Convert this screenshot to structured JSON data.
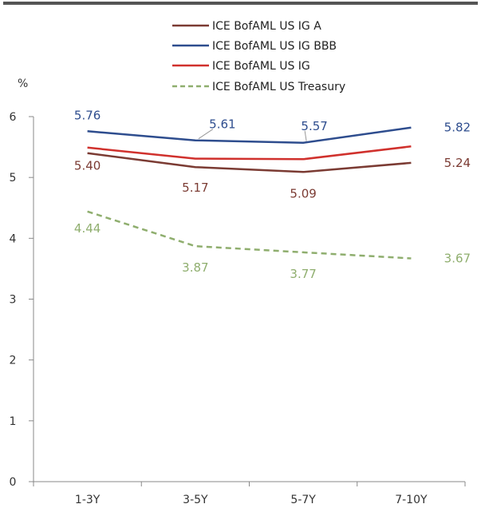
{
  "chart_data": {
    "type": "line",
    "title": "",
    "xlabel": "",
    "ylabel": "%",
    "ylim": [
      0,
      6
    ],
    "yticks": [
      0,
      1,
      2,
      3,
      4,
      5,
      6
    ],
    "categories": [
      "1-3Y",
      "3-5Y",
      "5-7Y",
      "7-10Y"
    ],
    "grid": false,
    "legend_position": "top-center",
    "series": [
      {
        "name": "ICE BofAML US IG A",
        "values": [
          5.4,
          5.17,
          5.09,
          5.24
        ],
        "labels": [
          "5.40",
          "5.17",
          "5.09",
          "5.24"
        ],
        "color": "#7b3b33",
        "dashed": false
      },
      {
        "name": "ICE BofAML US IG BBB",
        "values": [
          5.76,
          5.61,
          5.57,
          5.82
        ],
        "labels": [
          "5.76",
          "5.61",
          "5.57",
          "5.82"
        ],
        "color": "#2e4d8e",
        "dashed": false
      },
      {
        "name": "ICE BofAML US IG",
        "values": [
          5.49,
          5.31,
          5.3,
          5.51
        ],
        "labels": null,
        "color": "#d0312d",
        "dashed": false
      },
      {
        "name": "ICE BofAML US Treasury",
        "values": [
          4.44,
          3.87,
          3.77,
          3.67
        ],
        "labels": [
          "4.44",
          "3.87",
          "3.77",
          "3.67"
        ],
        "color": "#8fae6e",
        "dashed": true
      }
    ]
  }
}
